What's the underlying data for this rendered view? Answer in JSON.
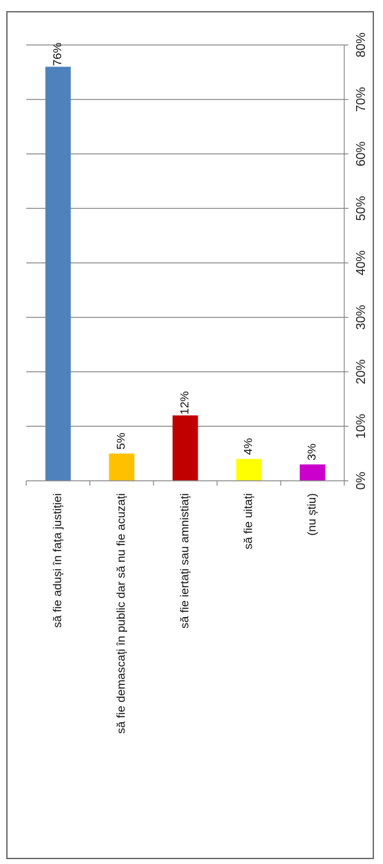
{
  "chart_data": {
    "type": "bar",
    "orientation": "horizontal",
    "text_rotation": "rotated 90 degrees",
    "title": "",
    "xlabel": "",
    "ylabel": "",
    "categories": [
      "să fie aduși în fața justiției",
      "să fie demascați în public dar să nu fie acuzați",
      "să fie iertați sau amnistiați",
      "să fie uitați",
      "(nu știu)"
    ],
    "values": [
      76,
      5,
      12,
      4,
      3
    ],
    "data_labels": [
      "76%",
      "5%",
      "12%",
      "4%",
      "3%"
    ],
    "colors": [
      "#4f81bd",
      "#ffc000",
      "#c00000",
      "#ffff00",
      "#cc00cc"
    ],
    "value_axis": {
      "range": [
        0,
        80
      ],
      "ticks": [
        "0%",
        "10%",
        "20%",
        "30%",
        "40%",
        "50%",
        "60%",
        "70%",
        "80%"
      ]
    },
    "grid": true,
    "legend": "none"
  }
}
